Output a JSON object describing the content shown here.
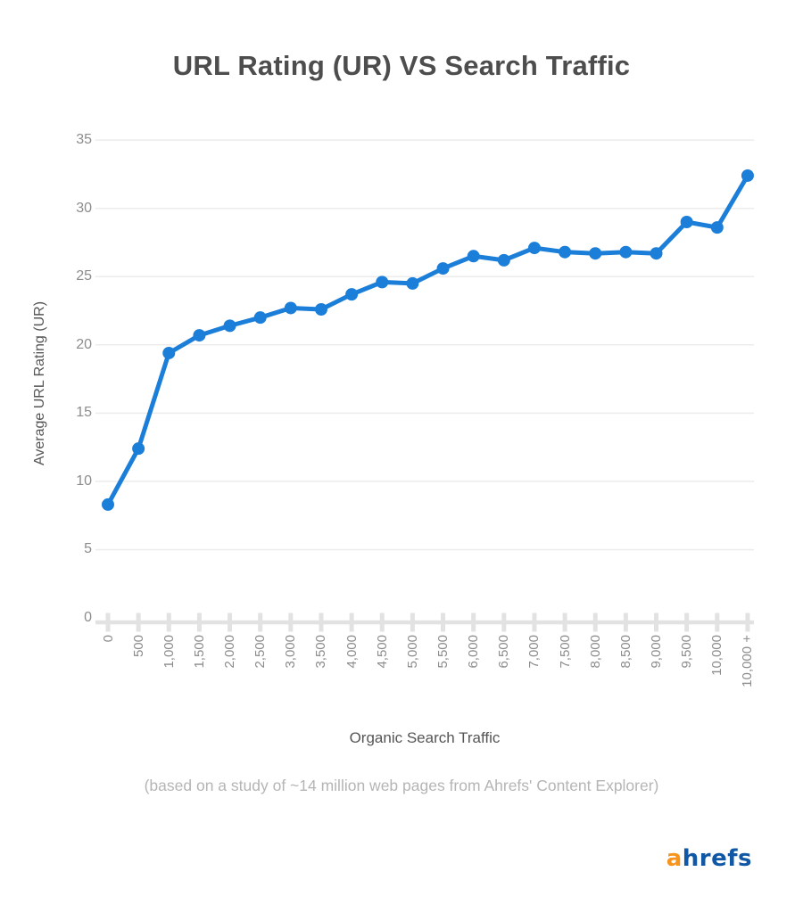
{
  "chart_data": {
    "type": "line",
    "title": "URL Rating (UR) VS Search Traffic",
    "xlabel": "Organic Search Traffic",
    "ylabel": "Average URL Rating (UR)",
    "subtitle": "(based on a study of ~14 million web pages from Ahrefs' Content Explorer)",
    "categories": [
      "0",
      "500",
      "1,000",
      "1,500",
      "2,000",
      "2,500",
      "3,000",
      "3,500",
      "4,000",
      "4,500",
      "5,000",
      "5,500",
      "6,000",
      "6,500",
      "7,000",
      "7,500",
      "8,000",
      "8,500",
      "9,000",
      "9,500",
      "10,000",
      "10,000 +"
    ],
    "values": [
      8.3,
      12.4,
      19.4,
      20.7,
      21.4,
      22.0,
      22.7,
      22.6,
      23.7,
      24.6,
      24.5,
      25.6,
      26.5,
      26.2,
      27.1,
      26.8,
      26.7,
      26.8,
      26.7,
      29.0,
      28.6,
      32.4
    ],
    "y_ticks": [
      35,
      30,
      25,
      20,
      15,
      10,
      5,
      0
    ],
    "ylim": [
      0,
      35
    ],
    "grid": true,
    "legend_position": "none",
    "line_color": "#1b7ed8",
    "point_color": "#1b7ed8"
  },
  "colors": {
    "background": "#ffffff",
    "title": "#4d4d4d",
    "axis_title": "#555555",
    "tick_label": "#8c8c8c",
    "subtitle": "#b5b5b5",
    "gridline": "#ececec",
    "axis_line": "#e2e2e2"
  },
  "logo": {
    "prefix": "a",
    "suffix": "hrefs",
    "prefix_color": "#f7941e",
    "suffix_color": "#1057a5"
  }
}
